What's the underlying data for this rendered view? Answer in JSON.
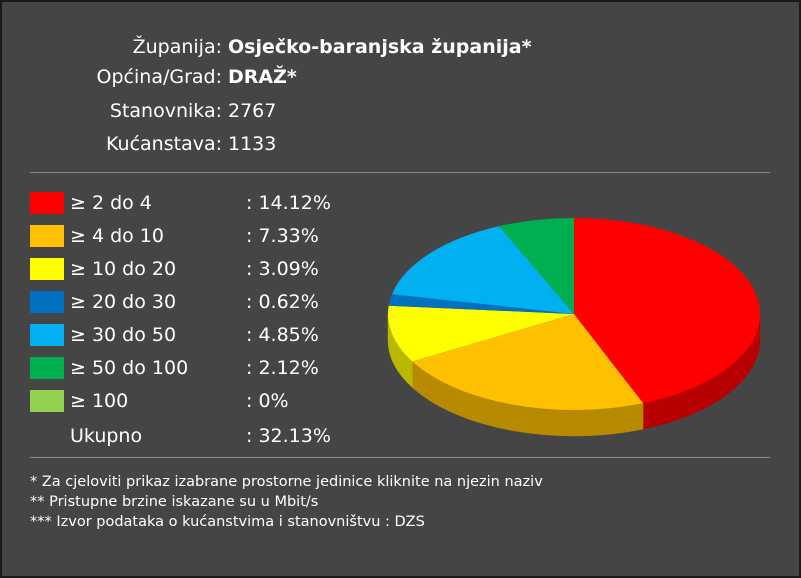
{
  "header": {
    "rows": [
      {
        "label": "Županija:",
        "value": "Osječko-baranjska županija*"
      },
      {
        "label": "Općina/Grad:",
        "value": "DRAŽ*"
      },
      {
        "label": "Stanovnika:",
        "value": 2767
      },
      {
        "label": "Kućanstava:",
        "value": 1133
      }
    ]
  },
  "chart_data": {
    "type": "pie",
    "categories": [
      "≥ 2 do 4",
      "≥ 4 do 10",
      "≥ 10 do 20",
      "≥ 20 do 30",
      "≥ 30 do 50",
      "≥ 50 do 100",
      "≥ 100"
    ],
    "values": [
      14.12,
      7.33,
      3.09,
      0.62,
      4.85,
      2.12,
      0
    ],
    "value_labels": [
      ": 14.12%",
      ": 7.33%",
      ": 3.09%",
      ": 0.62%",
      ": 4.85%",
      ": 2.12%",
      ": 0%"
    ],
    "colors": [
      "#ff0000",
      "#ffc000",
      "#ffff00",
      "#0070c0",
      "#00b0f0",
      "#00b050",
      "#92d050"
    ],
    "total_label": "Ukupno",
    "total_value_label": ": 32.13%"
  },
  "notes": [
    "* Za cjeloviti prikaz izabrane prostorne jedinice kliknite na njezin naziv",
    "** Pristupne brzine iskazane su u Mbit/s",
    "*** Izvor podataka o kućanstvima i stanovništvu : DZS"
  ]
}
